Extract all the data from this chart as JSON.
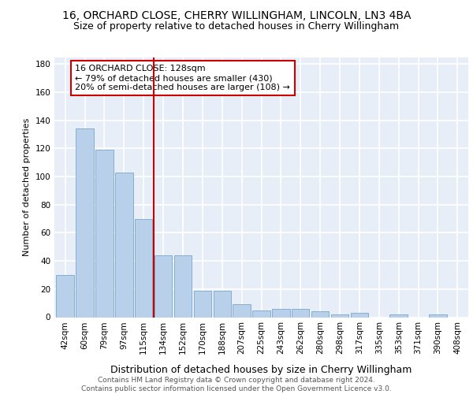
{
  "title1": "16, ORCHARD CLOSE, CHERRY WILLINGHAM, LINCOLN, LN3 4BA",
  "title2": "Size of property relative to detached houses in Cherry Willingham",
  "xlabel": "Distribution of detached houses by size in Cherry Willingham",
  "ylabel": "Number of detached properties",
  "categories": [
    "42sqm",
    "60sqm",
    "79sqm",
    "97sqm",
    "115sqm",
    "134sqm",
    "152sqm",
    "170sqm",
    "188sqm",
    "207sqm",
    "225sqm",
    "243sqm",
    "262sqm",
    "280sqm",
    "298sqm",
    "317sqm",
    "335sqm",
    "353sqm",
    "371sqm",
    "390sqm",
    "408sqm"
  ],
  "values": [
    30,
    134,
    119,
    103,
    70,
    44,
    44,
    19,
    19,
    9,
    5,
    6,
    6,
    4,
    2,
    3,
    0,
    2,
    0,
    2,
    0
  ],
  "bar_color": "#b8d0ea",
  "bar_edge_color": "#7ba7cc",
  "vline_color": "#cc0000",
  "annotation_text": "16 ORCHARD CLOSE: 128sqm\n← 79% of detached houses are smaller (430)\n20% of semi-detached houses are larger (108) →",
  "annotation_box_color": "#cc0000",
  "ylim": [
    0,
    185
  ],
  "yticks": [
    0,
    20,
    40,
    60,
    80,
    100,
    120,
    140,
    160,
    180
  ],
  "background_color": "#e8eef8",
  "grid_color": "#ffffff",
  "footer": "Contains HM Land Registry data © Crown copyright and database right 2024.\nContains public sector information licensed under the Open Government Licence v3.0.",
  "title1_fontsize": 10,
  "title2_fontsize": 9,
  "xlabel_fontsize": 9,
  "ylabel_fontsize": 8,
  "tick_fontsize": 7.5,
  "annot_fontsize": 8,
  "footer_fontsize": 6.5
}
